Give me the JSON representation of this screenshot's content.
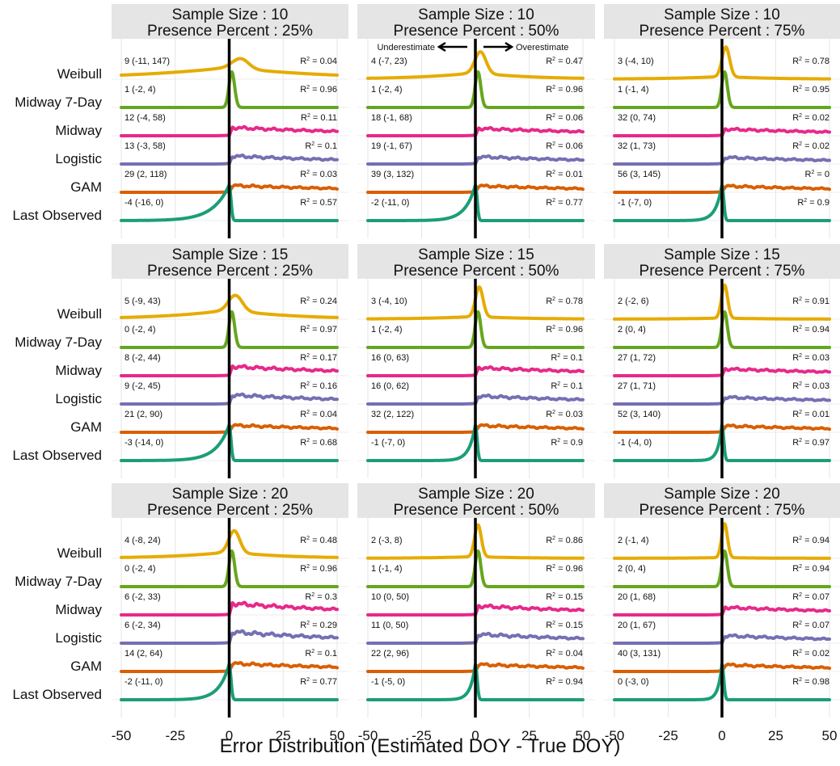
{
  "figure": {
    "xlabel": "Error Distribution (Estimated DOY - True DOY)",
    "annotation_left": "Underestimate",
    "annotation_right": "Overestimate",
    "facet_size_prefix": "Sample Size : ",
    "facet_presence_prefix": "Presence Percent : "
  },
  "chart_data": {
    "type": "density-ridge",
    "xlim": [
      -50,
      50
    ],
    "x_ticks": [
      -50,
      -25,
      0,
      25,
      50
    ],
    "x_tick_labels": [
      "-50",
      "-25",
      "0",
      "25",
      "50"
    ],
    "reference_line_x": 0,
    "methods": [
      "Weibull",
      "Midway 7-Day",
      "Midway",
      "Logistic",
      "GAM",
      "Last Observed"
    ],
    "colors": {
      "Weibull": "#e6ab02",
      "Midway 7-Day": "#66a61e",
      "Midway": "#e7298a",
      "Logistic": "#7570b3",
      "GAM": "#d95f02",
      "Last Observed": "#1b9e77"
    },
    "facets": [
      {
        "sample_size": "10",
        "presence": "25%",
        "stats": [
          {
            "method": "Weibull",
            "label": "9 (-11, 147)",
            "r2": "0.04"
          },
          {
            "method": "Midway 7-Day",
            "label": "1 (-2, 4)",
            "r2": "0.96"
          },
          {
            "method": "Midway",
            "label": "12 (-4, 58)",
            "r2": "0.11"
          },
          {
            "method": "Logistic",
            "label": "13 (-3, 58)",
            "r2": "0.1"
          },
          {
            "method": "GAM",
            "label": "29 (2, 118)",
            "r2": "0.03"
          },
          {
            "method": "Last Observed",
            "label": "-4 (-16, 0)",
            "r2": "0.57"
          }
        ]
      },
      {
        "sample_size": "10",
        "presence": "50%",
        "stats": [
          {
            "method": "Weibull",
            "label": "4 (-7, 23)",
            "r2": "0.47"
          },
          {
            "method": "Midway 7-Day",
            "label": "1 (-2, 4)",
            "r2": "0.96"
          },
          {
            "method": "Midway",
            "label": "18 (-1, 68)",
            "r2": "0.06"
          },
          {
            "method": "Logistic",
            "label": "19 (-1, 67)",
            "r2": "0.06"
          },
          {
            "method": "GAM",
            "label": "39 (3, 132)",
            "r2": "0.01"
          },
          {
            "method": "Last Observed",
            "label": "-2 (-11, 0)",
            "r2": "0.77"
          }
        ]
      },
      {
        "sample_size": "10",
        "presence": "75%",
        "stats": [
          {
            "method": "Weibull",
            "label": "3 (-4, 10)",
            "r2": "0.78"
          },
          {
            "method": "Midway 7-Day",
            "label": "1 (-1, 4)",
            "r2": "0.95"
          },
          {
            "method": "Midway",
            "label": "32 (0, 74)",
            "r2": "0.02"
          },
          {
            "method": "Logistic",
            "label": "32 (1, 73)",
            "r2": "0.02"
          },
          {
            "method": "GAM",
            "label": "56 (3, 145)",
            "r2": "0"
          },
          {
            "method": "Last Observed",
            "label": "-1 (-7, 0)",
            "r2": "0.9"
          }
        ]
      },
      {
        "sample_size": "15",
        "presence": "25%",
        "stats": [
          {
            "method": "Weibull",
            "label": "5 (-9, 43)",
            "r2": "0.24"
          },
          {
            "method": "Midway 7-Day",
            "label": "0 (-2, 4)",
            "r2": "0.97"
          },
          {
            "method": "Midway",
            "label": "8 (-2, 44)",
            "r2": "0.17"
          },
          {
            "method": "Logistic",
            "label": "9 (-2, 45)",
            "r2": "0.16"
          },
          {
            "method": "GAM",
            "label": "21 (2, 90)",
            "r2": "0.04"
          },
          {
            "method": "Last Observed",
            "label": "-3 (-14, 0)",
            "r2": "0.68"
          }
        ]
      },
      {
        "sample_size": "15",
        "presence": "50%",
        "stats": [
          {
            "method": "Weibull",
            "label": "3 (-4, 10)",
            "r2": "0.78"
          },
          {
            "method": "Midway 7-Day",
            "label": "1 (-2, 4)",
            "r2": "0.96"
          },
          {
            "method": "Midway",
            "label": "16 (0, 63)",
            "r2": "0.1"
          },
          {
            "method": "Logistic",
            "label": "16 (0, 62)",
            "r2": "0.1"
          },
          {
            "method": "GAM",
            "label": "32 (2, 122)",
            "r2": "0.03"
          },
          {
            "method": "Last Observed",
            "label": "-1 (-7, 0)",
            "r2": "0.9"
          }
        ]
      },
      {
        "sample_size": "15",
        "presence": "75%",
        "stats": [
          {
            "method": "Weibull",
            "label": "2 (-2, 6)",
            "r2": "0.91"
          },
          {
            "method": "Midway 7-Day",
            "label": "2 (0, 4)",
            "r2": "0.94"
          },
          {
            "method": "Midway",
            "label": "27 (1, 72)",
            "r2": "0.03"
          },
          {
            "method": "Logistic",
            "label": "27 (1, 71)",
            "r2": "0.03"
          },
          {
            "method": "GAM",
            "label": "52 (3, 140)",
            "r2": "0.01"
          },
          {
            "method": "Last Observed",
            "label": "-1 (-4, 0)",
            "r2": "0.97"
          }
        ]
      },
      {
        "sample_size": "20",
        "presence": "25%",
        "stats": [
          {
            "method": "Weibull",
            "label": "4 (-8, 24)",
            "r2": "0.48"
          },
          {
            "method": "Midway 7-Day",
            "label": "0 (-2, 4)",
            "r2": "0.96"
          },
          {
            "method": "Midway",
            "label": "6 (-2, 33)",
            "r2": "0.3"
          },
          {
            "method": "Logistic",
            "label": "6 (-2, 34)",
            "r2": "0.29"
          },
          {
            "method": "GAM",
            "label": "14 (2, 64)",
            "r2": "0.1"
          },
          {
            "method": "Last Observed",
            "label": "-2 (-11, 0)",
            "r2": "0.77"
          }
        ]
      },
      {
        "sample_size": "20",
        "presence": "50%",
        "stats": [
          {
            "method": "Weibull",
            "label": "2 (-3, 8)",
            "r2": "0.86"
          },
          {
            "method": "Midway 7-Day",
            "label": "1 (-1, 4)",
            "r2": "0.96"
          },
          {
            "method": "Midway",
            "label": "10 (0, 50)",
            "r2": "0.15"
          },
          {
            "method": "Logistic",
            "label": "11 (0, 50)",
            "r2": "0.15"
          },
          {
            "method": "GAM",
            "label": "22 (2, 96)",
            "r2": "0.04"
          },
          {
            "method": "Last Observed",
            "label": "-1 (-5, 0)",
            "r2": "0.94"
          }
        ]
      },
      {
        "sample_size": "20",
        "presence": "75%",
        "stats": [
          {
            "method": "Weibull",
            "label": "2 (-1, 4)",
            "r2": "0.94"
          },
          {
            "method": "Midway 7-Day",
            "label": "2 (0, 4)",
            "r2": "0.94"
          },
          {
            "method": "Midway",
            "label": "20 (1, 68)",
            "r2": "0.07"
          },
          {
            "method": "Logistic",
            "label": "20 (1, 67)",
            "r2": "0.07"
          },
          {
            "method": "GAM",
            "label": "40 (3, 131)",
            "r2": "0.02"
          },
          {
            "method": "Last Observed",
            "label": "0 (-3, 0)",
            "r2": "0.98"
          }
        ]
      }
    ]
  }
}
